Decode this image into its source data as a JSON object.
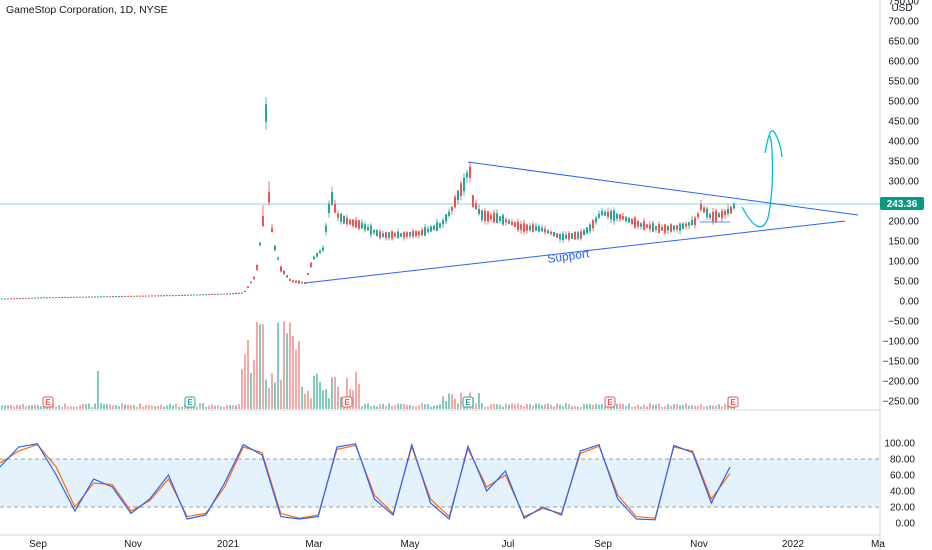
{
  "header": {
    "title": "GameStop Corporation, 1D, NYSE"
  },
  "currency_label": "USD",
  "price_tag": {
    "value": "243.36",
    "color": "#089981"
  },
  "annotations": {
    "support_label": "Support"
  },
  "colors": {
    "up": "#26a69a",
    "down": "#ef5350",
    "trendline": "#2962ff",
    "k_line": "#2962ff",
    "d_line": "#ff6d00",
    "drawing": "#00bcd4",
    "band_fill": "#e3f2fd"
  },
  "earnings_markers": [
    "E",
    "E",
    "E",
    "E",
    "E",
    "E",
    "E",
    "E"
  ],
  "chart_data": [
    {
      "type": "candlestick",
      "title": "GameStop Corporation, 1D, NYSE",
      "xlabel": "",
      "ylabel": "USD",
      "x_ticks": [
        "Sep",
        "Nov",
        "2021",
        "Mar",
        "May",
        "Jul",
        "Sep",
        "Nov",
        "2022",
        "Ma"
      ],
      "y_ticks": [
        "750.00",
        "700.00",
        "650.00",
        "600.00",
        "550.00",
        "500.00",
        "450.00",
        "400.00",
        "350.00",
        "300.00",
        "250.00",
        "200.00",
        "150.00",
        "100.00",
        "50.00",
        "0.00",
        "−50.00",
        "−100.00",
        "−150.00",
        "−200.00",
        "−250.00"
      ],
      "ylim": [
        -270,
        770
      ],
      "last_price": 243.36,
      "series": [
        {
          "name": "price",
          "points": [
            [
              "Aug 2020",
              5
            ],
            [
              "Sep 2020",
              8
            ],
            [
              "Oct 2020",
              12
            ],
            [
              "Nov 2020",
              13
            ],
            [
              "Dec 2020",
              17
            ],
            [
              "early Jan 2021",
              20
            ],
            [
              "mid Jan 2021",
              65
            ],
            [
              "late Jan 2021",
              325
            ],
            [
              "Jan 28 2021",
              480
            ],
            [
              "early Feb 2021",
              90
            ],
            [
              "mid Feb 2021",
              50
            ],
            [
              "late Feb 2021",
              45
            ],
            [
              "Feb 25 2021",
              110
            ],
            [
              "early Mar 2021",
              120
            ],
            [
              "Mar 10 2021",
              265
            ],
            [
              "mid Mar 2021",
              200
            ],
            [
              "late Mar 2021",
              185
            ],
            [
              "Apr 2021",
              160
            ],
            [
              "early May 2021",
              165
            ],
            [
              "late May 2021",
              220
            ],
            [
              "Jun 8 2021",
              300
            ],
            [
              "Jun 10 2021",
              345
            ],
            [
              "late Jun 2021",
              215
            ],
            [
              "Jul 2021",
              185
            ],
            [
              "early Aug 2021",
              160
            ],
            [
              "mid Aug 2021",
              155
            ],
            [
              "late Aug 2021",
              215
            ],
            [
              "Sep 2021",
              200
            ],
            [
              "Oct 2021",
              175
            ],
            [
              "late Oct 2021",
              185
            ],
            [
              "early Nov 2021",
              230
            ],
            [
              "mid Nov 2021",
              205
            ],
            [
              "Nov 22 2021",
              243.36
            ]
          ]
        }
      ],
      "trendlines": [
        {
          "name": "resistance",
          "from": [
            "Jun 10 2021",
            345
          ],
          "to": [
            "Jan 2022",
            210
          ]
        },
        {
          "name": "support",
          "from": [
            "Feb 25 2021",
            45
          ],
          "to": [
            "Jan 2022",
            215
          ]
        }
      ]
    },
    {
      "type": "bar",
      "title": "Volume",
      "description_values_relative": [
        [
          "Jan 2021",
          0.15
        ],
        [
          "Jan 25 2021",
          0.6
        ],
        [
          "Jan 27 2021",
          0.95
        ],
        [
          "Jan 29 2021",
          0.75
        ],
        [
          "Feb 2021",
          0.45
        ],
        [
          "Feb 25 2021",
          0.6
        ],
        [
          "Mar 10 2021",
          0.3
        ],
        [
          "Jun 2021",
          0.12
        ],
        [
          "Nov 2021",
          0.05
        ]
      ]
    },
    {
      "type": "line",
      "title": "Stochastic",
      "y_ticks": [
        "100.00",
        "80.00",
        "60.00",
        "40.00",
        "20.00",
        "0.00"
      ],
      "ylim": [
        0,
        100
      ],
      "band": [
        20,
        80
      ],
      "series": [
        {
          "name": "%K",
          "values": [
            70,
            95,
            99,
            60,
            15,
            55,
            45,
            12,
            30,
            60,
            5,
            10,
            50,
            98,
            85,
            8,
            5,
            8,
            95,
            99,
            30,
            10,
            98,
            25,
            5,
            96,
            40,
            65,
            6,
            20,
            10,
            90,
            98,
            30,
            5,
            4,
            97,
            88,
            25,
            70
          ]
        },
        {
          "name": "%D",
          "values": [
            75,
            90,
            98,
            70,
            20,
            50,
            48,
            15,
            28,
            55,
            8,
            12,
            45,
            95,
            88,
            12,
            6,
            10,
            92,
            97,
            35,
            12,
            95,
            30,
            8,
            93,
            45,
            60,
            8,
            18,
            12,
            87,
            96,
            35,
            8,
            6,
            95,
            90,
            30,
            62
          ]
        }
      ]
    }
  ]
}
